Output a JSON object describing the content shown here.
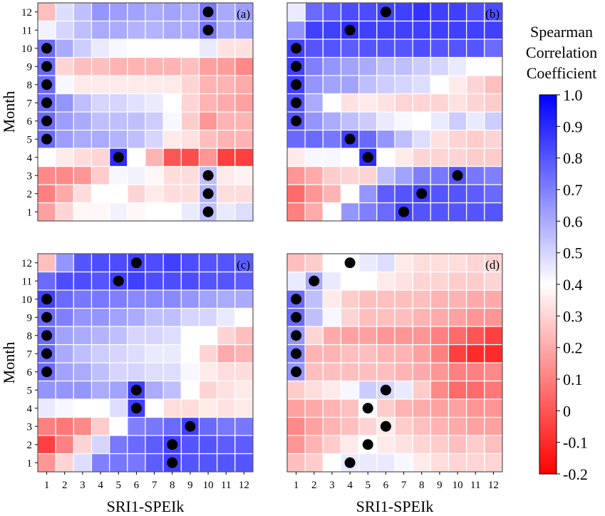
{
  "chart_data": {
    "type": "heatmap",
    "colorbar": {
      "title_lines": [
        "Spearman",
        "Correlation",
        "Coefficient"
      ],
      "min": -0.2,
      "max": 1.0,
      "ticks": [
        "1.0",
        "0.9",
        "0.8",
        "0.7",
        "0.6",
        "0.5",
        "0.4",
        "0.3",
        "0.2",
        "0.1",
        "0",
        "-0.1",
        "-0.2"
      ],
      "colormap": [
        {
          "value": -0.2,
          "color": "#ff0000"
        },
        {
          "value": 0.4,
          "color": "#ffffff"
        },
        {
          "value": 1.0,
          "color": "#0000ff"
        }
      ]
    },
    "x_tick_labels": [
      "1",
      "2",
      "3",
      "4",
      "5",
      "6",
      "7",
      "8",
      "9",
      "10",
      "11",
      "12"
    ],
    "y_tick_labels": [
      "1",
      "2",
      "3",
      "4",
      "5",
      "6",
      "7",
      "8",
      "9",
      "10",
      "11",
      "12"
    ],
    "panels": [
      {
        "label": "(a)",
        "xlabel": "",
        "ylabel": "Month",
        "rows": [
          [
            0.18,
            0.3,
            0.38,
            0.38,
            0.43,
            0.38,
            0.4,
            0.4,
            0.45,
            0.55,
            0.45,
            0.48
          ],
          [
            0.1,
            0.2,
            0.32,
            0.4,
            0.4,
            0.3,
            0.35,
            0.32,
            0.32,
            0.58,
            0.32,
            0.32
          ],
          [
            0.12,
            0.12,
            0.15,
            0.28,
            0.42,
            0.43,
            0.38,
            0.32,
            0.32,
            0.55,
            0.35,
            0.37
          ],
          [
            0.4,
            0.35,
            0.32,
            0.3,
            0.9,
            0.4,
            0.22,
            0.0,
            -0.02,
            0.15,
            -0.05,
            -0.05
          ],
          [
            0.75,
            0.63,
            0.6,
            0.6,
            0.58,
            0.55,
            0.5,
            0.35,
            0.33,
            0.25,
            0.22,
            0.22
          ],
          [
            0.75,
            0.63,
            0.6,
            0.55,
            0.55,
            0.55,
            0.52,
            0.42,
            0.28,
            0.15,
            0.22,
            0.22
          ],
          [
            0.75,
            0.65,
            0.55,
            0.5,
            0.5,
            0.47,
            0.45,
            0.4,
            0.3,
            0.22,
            0.2,
            0.18
          ],
          [
            0.75,
            0.42,
            0.35,
            0.35,
            0.35,
            0.35,
            0.35,
            0.35,
            0.3,
            0.22,
            0.22,
            0.2
          ],
          [
            0.75,
            0.3,
            0.25,
            0.25,
            0.22,
            0.22,
            0.22,
            0.22,
            0.25,
            0.18,
            0.17,
            0.12
          ],
          [
            0.75,
            0.6,
            0.52,
            0.45,
            0.42,
            0.4,
            0.4,
            0.4,
            0.4,
            0.45,
            0.33,
            0.33
          ],
          [
            0.43,
            0.5,
            0.55,
            0.6,
            0.6,
            0.58,
            0.58,
            0.6,
            0.6,
            0.72,
            0.6,
            0.62
          ],
          [
            0.25,
            0.48,
            0.55,
            0.65,
            0.63,
            0.62,
            0.6,
            0.62,
            0.6,
            0.72,
            0.6,
            0.63
          ]
        ],
        "markers": [
          [
            10,
            1
          ],
          [
            10,
            2
          ],
          [
            10,
            3
          ],
          [
            5,
            4
          ],
          [
            1,
            5
          ],
          [
            1,
            6
          ],
          [
            1,
            7
          ],
          [
            1,
            8
          ],
          [
            1,
            9
          ],
          [
            1,
            10
          ],
          [
            10,
            11
          ],
          [
            10,
            12
          ]
        ]
      },
      {
        "label": "(b)",
        "xlabel": "",
        "ylabel": "",
        "rows": [
          [
            0.1,
            0.2,
            0.4,
            0.65,
            0.7,
            0.75,
            0.85,
            0.8,
            0.8,
            0.8,
            0.8,
            0.8
          ],
          [
            0.05,
            0.15,
            0.22,
            0.4,
            0.65,
            0.78,
            0.8,
            0.85,
            0.8,
            0.8,
            0.78,
            0.75
          ],
          [
            0.15,
            0.2,
            0.28,
            0.3,
            0.3,
            0.55,
            0.62,
            0.7,
            0.72,
            0.8,
            0.72,
            0.7
          ],
          [
            0.35,
            0.42,
            0.42,
            0.4,
            0.9,
            0.4,
            0.35,
            0.3,
            0.3,
            0.3,
            0.28,
            0.28
          ],
          [
            0.75,
            0.75,
            0.72,
            0.85,
            0.75,
            0.65,
            0.55,
            0.48,
            0.33,
            0.3,
            0.28,
            0.3
          ],
          [
            0.8,
            0.65,
            0.6,
            0.55,
            0.52,
            0.45,
            0.42,
            0.4,
            0.45,
            0.52,
            0.45,
            0.52
          ],
          [
            0.8,
            0.6,
            0.4,
            0.33,
            0.35,
            0.33,
            0.3,
            0.3,
            0.3,
            0.33,
            0.3,
            0.28
          ],
          [
            0.85,
            0.65,
            0.62,
            0.62,
            0.55,
            0.52,
            0.5,
            0.48,
            0.4,
            0.35,
            0.3,
            0.25
          ],
          [
            0.85,
            0.7,
            0.65,
            0.62,
            0.6,
            0.55,
            0.55,
            0.52,
            0.5,
            0.45,
            0.4,
            0.4
          ],
          [
            0.85,
            0.8,
            0.8,
            0.78,
            0.8,
            0.8,
            0.8,
            0.82,
            0.8,
            0.8,
            0.8,
            0.75
          ],
          [
            0.65,
            0.85,
            0.85,
            0.9,
            0.85,
            0.85,
            0.85,
            0.85,
            0.85,
            0.85,
            0.85,
            0.85
          ],
          [
            0.45,
            0.75,
            0.78,
            0.82,
            0.82,
            0.85,
            0.85,
            0.88,
            0.85,
            0.85,
            0.82,
            0.82
          ]
        ],
        "markers": [
          [
            7,
            1
          ],
          [
            8,
            2
          ],
          [
            10,
            3
          ],
          [
            5,
            4
          ],
          [
            4,
            5
          ],
          [
            1,
            6
          ],
          [
            1,
            7
          ],
          [
            1,
            8
          ],
          [
            1,
            9
          ],
          [
            1,
            10
          ],
          [
            4,
            11
          ],
          [
            6,
            12
          ]
        ]
      },
      {
        "label": "(c)",
        "xlabel": "SRI1-SPEIk",
        "ylabel": "Month",
        "rows": [
          [
            0.15,
            0.3,
            0.48,
            0.7,
            0.72,
            0.72,
            0.78,
            0.85,
            0.8,
            0.8,
            0.8,
            0.8
          ],
          [
            -0.05,
            0.1,
            0.3,
            0.5,
            0.72,
            0.75,
            0.78,
            0.85,
            0.8,
            0.8,
            0.78,
            0.78
          ],
          [
            0.1,
            0.08,
            0.12,
            0.28,
            0.4,
            0.7,
            0.72,
            0.75,
            0.85,
            0.75,
            0.72,
            0.72
          ],
          [
            0.45,
            0.42,
            0.4,
            0.4,
            0.48,
            0.85,
            0.4,
            0.32,
            0.32,
            0.35,
            0.33,
            0.35
          ],
          [
            0.65,
            0.65,
            0.65,
            0.6,
            0.62,
            0.85,
            0.6,
            0.55,
            0.4,
            0.3,
            0.33,
            0.35
          ],
          [
            0.75,
            0.62,
            0.6,
            0.55,
            0.5,
            0.5,
            0.48,
            0.48,
            0.42,
            0.35,
            0.32,
            0.32
          ],
          [
            0.75,
            0.6,
            0.55,
            0.52,
            0.5,
            0.48,
            0.45,
            0.45,
            0.4,
            0.3,
            0.2,
            0.22
          ],
          [
            0.75,
            0.62,
            0.6,
            0.58,
            0.55,
            0.5,
            0.5,
            0.48,
            0.4,
            0.4,
            0.3,
            0.25
          ],
          [
            0.75,
            0.7,
            0.65,
            0.65,
            0.62,
            0.6,
            0.55,
            0.55,
            0.5,
            0.5,
            0.45,
            0.4
          ],
          [
            0.85,
            0.75,
            0.72,
            0.72,
            0.7,
            0.68,
            0.68,
            0.68,
            0.65,
            0.62,
            0.6,
            0.6
          ],
          [
            0.75,
            0.82,
            0.82,
            0.8,
            0.85,
            0.85,
            0.82,
            0.82,
            0.82,
            0.8,
            0.8,
            0.78
          ],
          [
            0.25,
            0.65,
            0.8,
            0.82,
            0.82,
            0.85,
            0.82,
            0.85,
            0.82,
            0.8,
            0.8,
            0.78
          ]
        ],
        "markers": [
          [
            8,
            1
          ],
          [
            8,
            2
          ],
          [
            9,
            3
          ],
          [
            6,
            4
          ],
          [
            6,
            5
          ],
          [
            1,
            6
          ],
          [
            1,
            7
          ],
          [
            1,
            8
          ],
          [
            1,
            9
          ],
          [
            1,
            10
          ],
          [
            5,
            11
          ],
          [
            6,
            12
          ]
        ]
      },
      {
        "label": "(d)",
        "xlabel": "SRI1-SPEIk",
        "ylabel": "",
        "rows": [
          [
            0.25,
            0.28,
            0.4,
            0.45,
            0.45,
            0.45,
            0.42,
            0.35,
            0.32,
            0.3,
            0.3,
            0.3
          ],
          [
            0.15,
            0.22,
            0.28,
            0.35,
            0.4,
            0.35,
            0.33,
            0.3,
            0.28,
            0.25,
            0.28,
            0.25
          ],
          [
            0.12,
            0.18,
            0.22,
            0.25,
            0.3,
            0.35,
            0.28,
            0.25,
            0.22,
            0.2,
            0.18,
            0.18
          ],
          [
            0.18,
            0.2,
            0.22,
            0.25,
            0.4,
            0.28,
            0.22,
            0.2,
            0.18,
            0.18,
            0.15,
            0.15
          ],
          [
            0.28,
            0.32,
            0.35,
            0.42,
            0.52,
            0.5,
            0.45,
            0.28,
            0.12,
            0.05,
            0.05,
            0.08
          ],
          [
            0.65,
            0.25,
            0.25,
            0.25,
            0.25,
            0.25,
            0.22,
            0.2,
            0.15,
            0.1,
            0.1,
            0.12
          ],
          [
            0.7,
            0.22,
            0.22,
            0.25,
            0.25,
            0.22,
            0.22,
            0.18,
            0.1,
            -0.05,
            -0.1,
            -0.1
          ],
          [
            0.65,
            0.3,
            0.2,
            0.18,
            0.18,
            0.15,
            0.15,
            0.15,
            0.1,
            0.05,
            0.0,
            -0.05
          ],
          [
            0.75,
            0.55,
            0.42,
            0.3,
            0.25,
            0.25,
            0.25,
            0.22,
            0.2,
            0.18,
            0.15,
            0.15
          ],
          [
            0.75,
            0.55,
            0.35,
            0.28,
            0.25,
            0.25,
            0.25,
            0.25,
            0.22,
            0.22,
            0.2,
            0.2
          ],
          [
            0.45,
            0.6,
            0.45,
            0.4,
            0.4,
            0.35,
            0.33,
            0.3,
            0.3,
            0.28,
            0.28,
            0.3
          ],
          [
            0.25,
            0.28,
            0.4,
            0.4,
            0.45,
            0.48,
            0.35,
            0.32,
            0.32,
            0.32,
            0.3,
            0.3
          ]
        ],
        "markers": [
          [
            4,
            1
          ],
          [
            5,
            2
          ],
          [
            6,
            3
          ],
          [
            5,
            4
          ],
          [
            6,
            5
          ],
          [
            1,
            6
          ],
          [
            1,
            7
          ],
          [
            1,
            8
          ],
          [
            1,
            9
          ],
          [
            1,
            10
          ],
          [
            2,
            11
          ],
          [
            4,
            12
          ]
        ]
      }
    ]
  }
}
